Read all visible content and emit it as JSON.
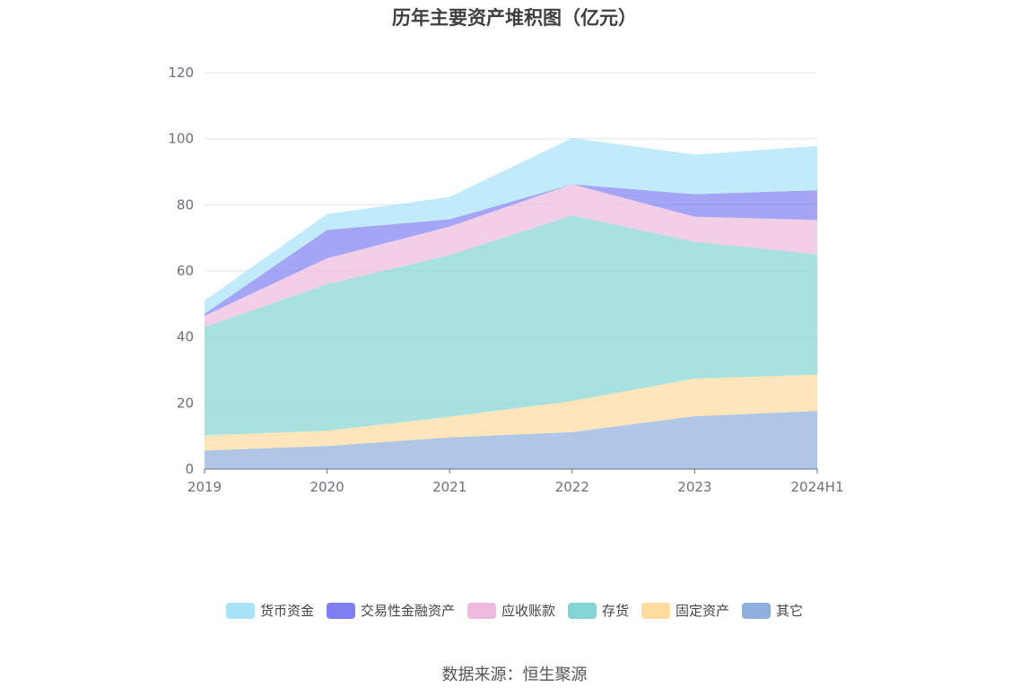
{
  "chart_data": {
    "type": "area",
    "stacked": true,
    "title": "历年主要资产堆积图（亿元）",
    "categories": [
      "2019",
      "2020",
      "2021",
      "2022",
      "2023",
      "2024H1"
    ],
    "ylim": [
      0,
      120
    ],
    "yticks": [
      0,
      20,
      40,
      60,
      80,
      100,
      120
    ],
    "grid": true,
    "legend_position": "bottom",
    "series": [
      {
        "name": "其它",
        "color": "#8eaedc",
        "values": [
          5.6,
          7.0,
          9.6,
          11.2,
          16.0,
          17.6
        ]
      },
      {
        "name": "固定资产",
        "color": "#fddc9c",
        "values": [
          4.6,
          4.6,
          6.2,
          9.4,
          11.4,
          11.0
        ]
      },
      {
        "name": "存货",
        "color": "#85d4d4",
        "values": [
          32.8,
          44.4,
          49.0,
          56.2,
          41.4,
          36.4
        ]
      },
      {
        "name": "应收账款",
        "color": "#eebadd",
        "values": [
          3.4,
          7.8,
          8.6,
          9.4,
          7.6,
          10.4
        ]
      },
      {
        "name": "交易性金融资产",
        "color": "#7f7ff2",
        "values": [
          0.6,
          8.6,
          2.2,
          0.0,
          6.8,
          9.0
        ]
      },
      {
        "name": "货币资金",
        "color": "#a7e3f8",
        "values": [
          4.0,
          4.8,
          6.8,
          14.0,
          12.0,
          13.4
        ]
      }
    ],
    "legend_order": [
      "货币资金",
      "交易性金融资产",
      "应收账款",
      "存货",
      "固定资产",
      "其它"
    ]
  },
  "source": "数据来源：恒生聚源"
}
